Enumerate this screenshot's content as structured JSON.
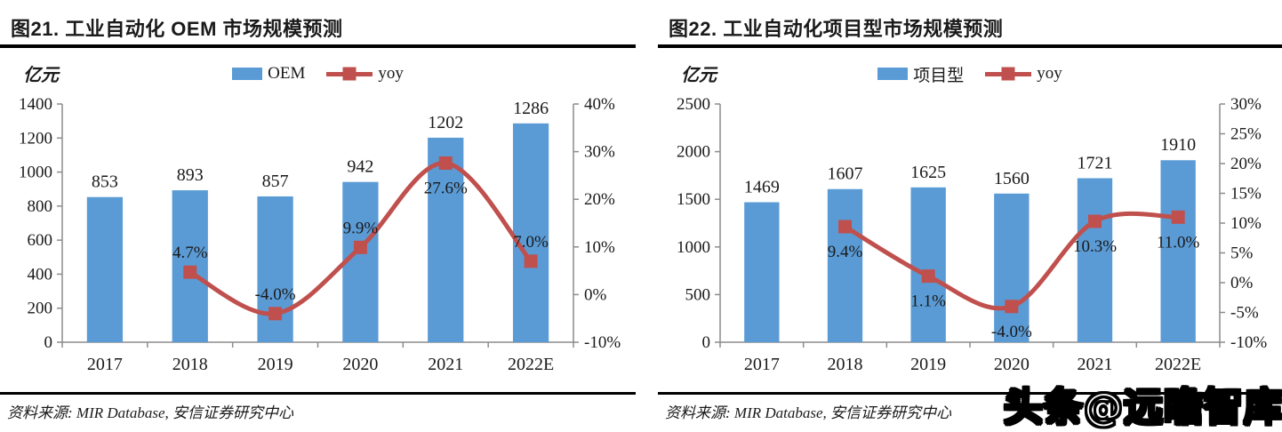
{
  "watermark": {
    "text": "头条@远瞻智库"
  },
  "chart_data": [
    {
      "type": "bar+line",
      "title": "图21. 工业自动化 OEM 市场规模预测",
      "unit_label": "亿元",
      "source": "资料来源: MIR Database, 安信证券研究中心",
      "categories": [
        "2017",
        "2018",
        "2019",
        "2020",
        "2021",
        "2022E"
      ],
      "series": [
        {
          "name": "OEM",
          "type": "bar",
          "color": "#5B9BD5",
          "values": [
            853,
            893,
            857,
            942,
            1202,
            1286
          ],
          "labels": [
            "853",
            "893",
            "857",
            "942",
            "1202",
            "1286"
          ]
        },
        {
          "name": "yoy",
          "type": "line",
          "axis": "right",
          "color": "#C0504D",
          "values": [
            null,
            4.7,
            -4.0,
            9.9,
            27.6,
            7.0
          ],
          "labels": [
            null,
            "4.7%",
            "-4.0%",
            "9.9%",
            "27.6%",
            "7.0%"
          ],
          "label_side": [
            null,
            "above",
            "above",
            "above",
            "below",
            "above"
          ]
        }
      ],
      "left_axis": {
        "min": 0,
        "max": 1400,
        "step": 200,
        "ticks": [
          "0",
          "200",
          "400",
          "600",
          "800",
          "1000",
          "1200",
          "1400"
        ]
      },
      "right_axis": {
        "min": -10,
        "max": 40,
        "step": 10,
        "ticks": [
          "-10%",
          "0%",
          "10%",
          "20%",
          "30%",
          "40%"
        ]
      },
      "legend_position": "top-center",
      "grid": false
    },
    {
      "type": "bar+line",
      "title": "图22. 工业自动化项目型市场规模预测",
      "unit_label": "亿元",
      "source": "资料来源: MIR Database, 安信证券研究中心",
      "categories": [
        "2017",
        "2018",
        "2019",
        "2020",
        "2021",
        "2022E"
      ],
      "series": [
        {
          "name": "项目型",
          "type": "bar",
          "color": "#5B9BD5",
          "values": [
            1469,
            1607,
            1625,
            1560,
            1721,
            1910
          ],
          "labels": [
            "1469",
            "1607",
            "1625",
            "1560",
            "1721",
            "1910"
          ]
        },
        {
          "name": "yoy",
          "type": "line",
          "axis": "right",
          "color": "#C0504D",
          "values": [
            null,
            9.4,
            1.1,
            -4.0,
            10.3,
            11.0
          ],
          "labels": [
            null,
            "9.4%",
            "1.1%",
            "-4.0%",
            "10.3%",
            "11.0%"
          ],
          "label_side": [
            null,
            "below",
            "below",
            "below",
            "below",
            "below"
          ]
        }
      ],
      "left_axis": {
        "min": 0,
        "max": 2500,
        "step": 500,
        "ticks": [
          "0",
          "500",
          "1000",
          "1500",
          "2000",
          "2500"
        ]
      },
      "right_axis": {
        "min": -10,
        "max": 30,
        "step": 5,
        "ticks": [
          "-10%",
          "-5%",
          "0%",
          "5%",
          "10%",
          "15%",
          "20%",
          "25%",
          "30%"
        ]
      },
      "legend_position": "top-center",
      "grid": false
    }
  ]
}
